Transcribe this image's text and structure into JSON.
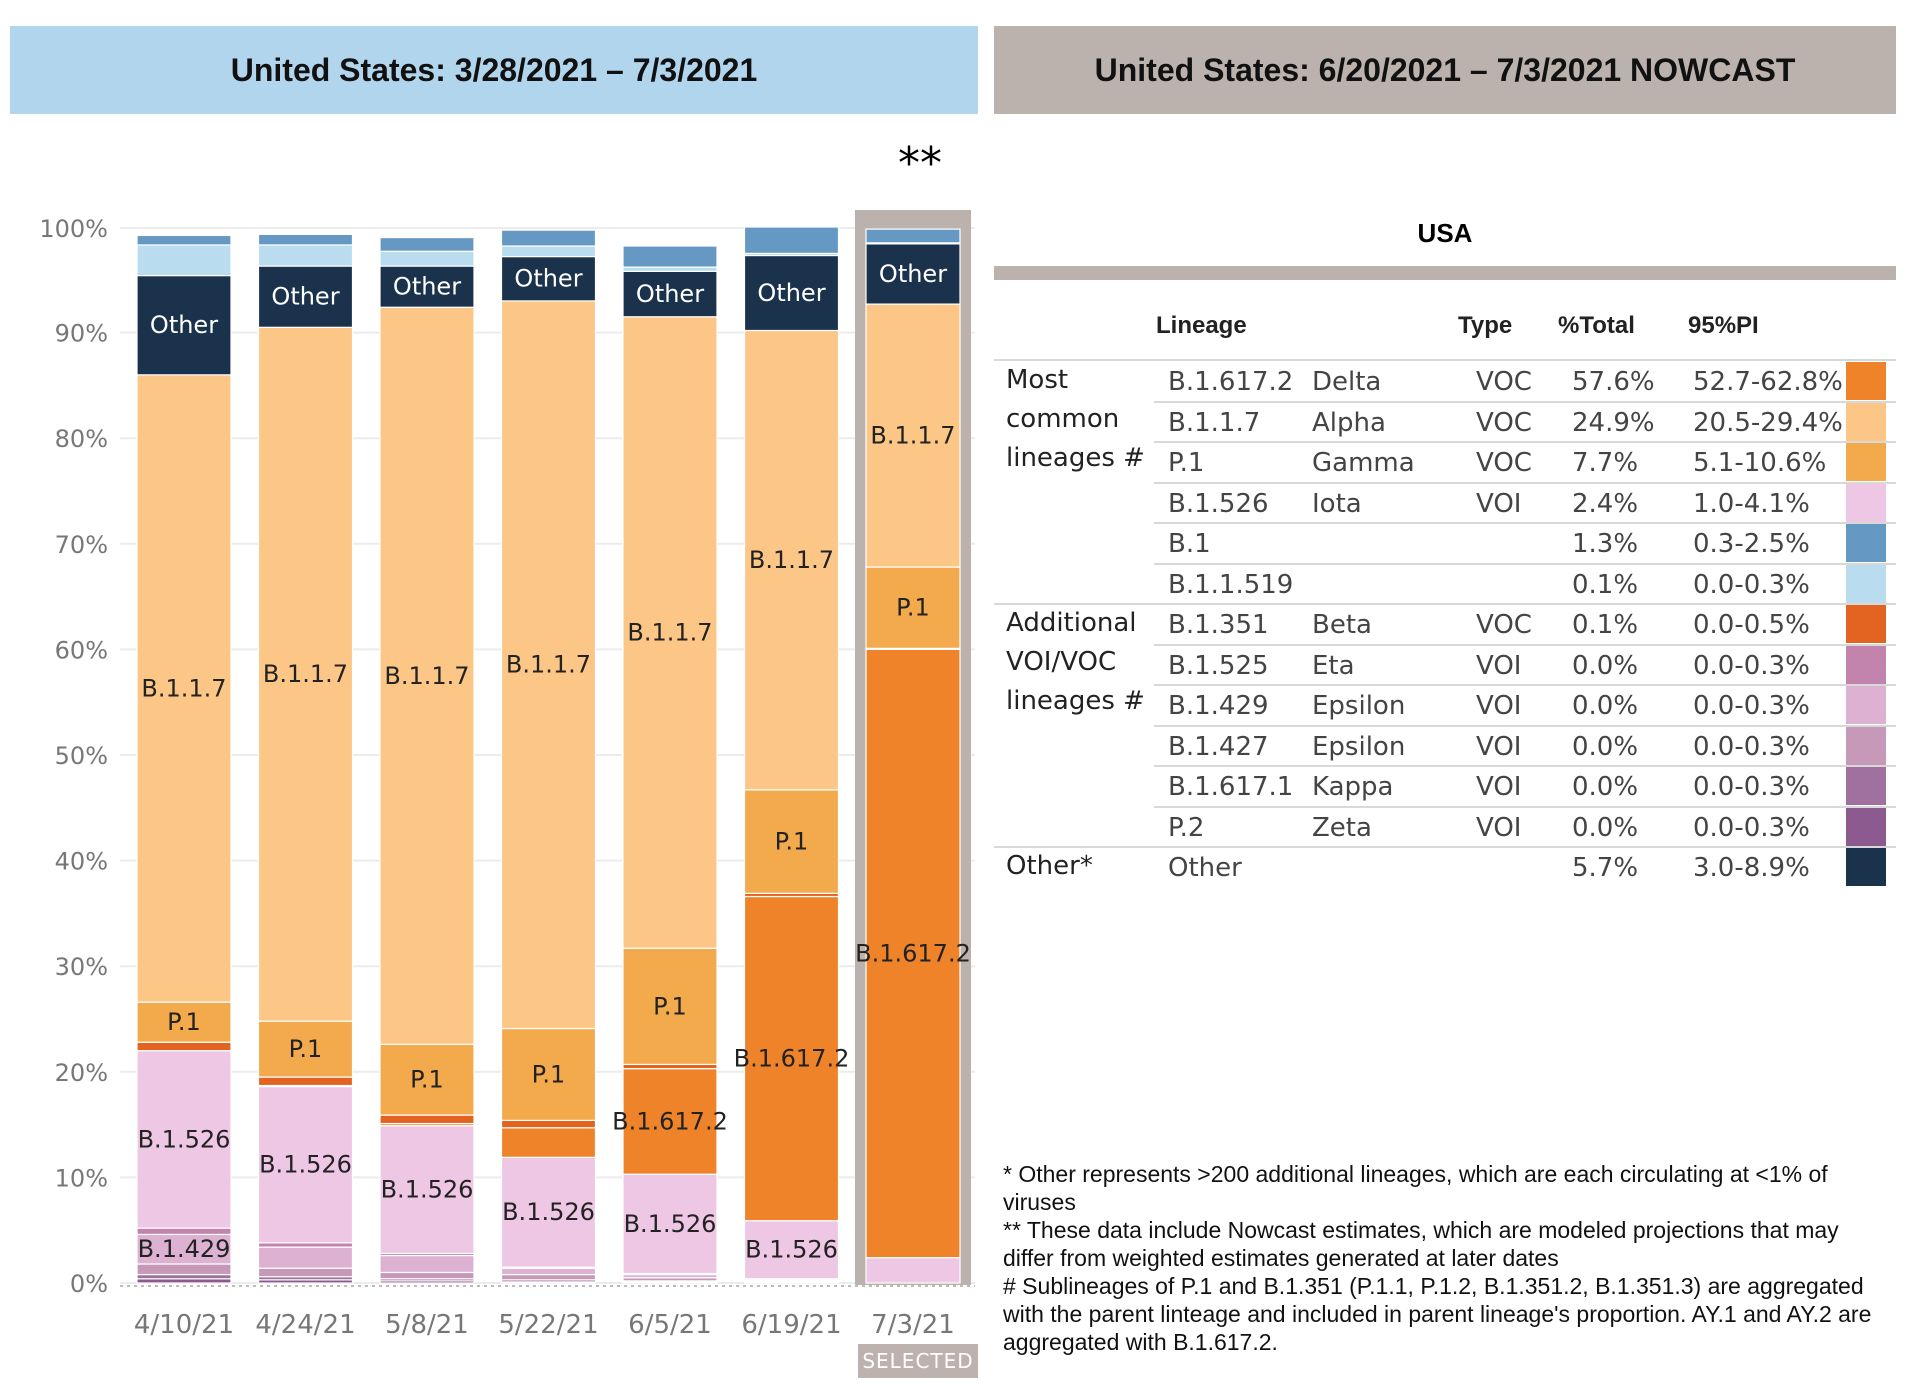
{
  "headers": {
    "left": "United States: 3/28/2021 – 7/3/2021",
    "right": "United States: 6/20/2021 – 7/3/2021 NOWCAST"
  },
  "stars": "**",
  "selected_label": "SELECTED",
  "chart_data": {
    "type": "bar",
    "stacked": true,
    "ylim": [
      0,
      100
    ],
    "yticks": [
      "0%",
      "10%",
      "20%",
      "30%",
      "40%",
      "50%",
      "60%",
      "70%",
      "80%",
      "90%",
      "100%"
    ],
    "categories": [
      "4/10/21",
      "4/24/21",
      "5/8/21",
      "5/22/21",
      "6/5/21",
      "6/19/21",
      "7/3/21"
    ],
    "selected_index": 6,
    "series": [
      {
        "name": "P.2",
        "color": "#8d5a8f",
        "values": [
          0.4,
          0.3,
          0.2,
          0.1,
          0.1,
          0.1,
          0.0
        ]
      },
      {
        "name": "B.1.617.1",
        "color": "#a0709e",
        "values": [
          0.4,
          0.3,
          0.2,
          0.2,
          0.1,
          0.1,
          0.0
        ]
      },
      {
        "name": "B.1.427",
        "color": "#c699b9",
        "values": [
          1.0,
          0.8,
          0.6,
          0.5,
          0.3,
          0.1,
          0.0
        ]
      },
      {
        "name": "B.1.429",
        "color": "#dcb1d1",
        "values": [
          2.8,
          2.0,
          1.6,
          0.6,
          0.3,
          0.1,
          0.0
        ]
      },
      {
        "name": "B.1.525",
        "color": "#c284ac",
        "values": [
          0.6,
          0.4,
          0.2,
          0.1,
          0.1,
          0.0,
          0.0
        ]
      },
      {
        "name": "B.1.526",
        "color": "#edc7e4",
        "values": [
          16.8,
          14.8,
          12.1,
          10.4,
          9.4,
          5.5,
          2.4
        ]
      },
      {
        "name": "B.1.617.2",
        "color": "#ef832a",
        "values": [
          0.0,
          0.1,
          0.2,
          2.8,
          10.0,
          30.7,
          57.6
        ]
      },
      {
        "name": "B.1.351",
        "color": "#e26420",
        "values": [
          0.8,
          0.8,
          0.8,
          0.7,
          0.4,
          0.3,
          0.1
        ]
      },
      {
        "name": "P.1",
        "color": "#f2aa4c",
        "values": [
          3.8,
          5.3,
          6.7,
          8.7,
          11.0,
          9.8,
          7.7
        ]
      },
      {
        "name": "B.1.1.7",
        "color": "#fbc686",
        "values": [
          59.4,
          65.7,
          69.8,
          68.9,
          59.8,
          43.5,
          24.9
        ]
      },
      {
        "name": "Other",
        "color": "#1b324d",
        "values": [
          9.4,
          5.8,
          3.9,
          4.2,
          4.3,
          7.1,
          5.7
        ]
      },
      {
        "name": "B.1.1.519",
        "color": "#b9dcef",
        "values": [
          2.9,
          2.0,
          1.4,
          1.0,
          0.4,
          0.2,
          0.1
        ]
      },
      {
        "name": "B.1",
        "color": "#6598c2",
        "values": [
          0.9,
          1.0,
          1.3,
          1.5,
          2.0,
          2.5,
          1.3
        ]
      }
    ],
    "labels": [
      [
        "B.1.429",
        "B.1.526",
        "P.1",
        "B.1.1.7",
        "Other"
      ],
      [
        "B.1.526",
        "P.1",
        "B.1.1.7",
        "Other"
      ],
      [
        "B.1.526",
        "P.1",
        "B.1.1.7",
        "Other"
      ],
      [
        "B.1.526",
        "P.1",
        "B.1.1.7",
        "Other"
      ],
      [
        "B.1.526",
        "B.1.617.2",
        "P.1",
        "B.1.1.7",
        "Other"
      ],
      [
        "B.1.526",
        "B.1.617.2",
        "P.1",
        "B.1.1.7",
        "Other"
      ],
      [
        "B.1.617.2",
        "P.1",
        "B.1.1.7",
        "Other"
      ]
    ]
  },
  "table": {
    "title": "USA",
    "headers": {
      "lineage": "Lineage",
      "type": "Type",
      "total": "%Total",
      "pi": "95%PI"
    },
    "groups": [
      {
        "label": [
          "Most",
          "common",
          "lineages #"
        ],
        "row_start": 0
      },
      {
        "label": [
          "Additional",
          "VOI/VOC",
          "lineages #"
        ],
        "row_start": 6
      },
      {
        "label": [
          "Other*"
        ],
        "row_start": 12
      }
    ],
    "rows": [
      {
        "lineage": "B.1.617.2",
        "name": "Delta",
        "type": "VOC",
        "total": "57.6%",
        "pi": "52.7-62.8%",
        "color": "#ef832a"
      },
      {
        "lineage": "B.1.1.7",
        "name": "Alpha",
        "type": "VOC",
        "total": "24.9%",
        "pi": "20.5-29.4%",
        "color": "#fbc686"
      },
      {
        "lineage": "P.1",
        "name": "Gamma",
        "type": "VOC",
        "total": "7.7%",
        "pi": "5.1-10.6%",
        "color": "#f2aa4c"
      },
      {
        "lineage": "B.1.526",
        "name": "Iota",
        "type": "VOI",
        "total": "2.4%",
        "pi": "1.0-4.1%",
        "color": "#edc7e4"
      },
      {
        "lineage": "B.1",
        "name": "",
        "type": "",
        "total": "1.3%",
        "pi": "0.3-2.5%",
        "color": "#6598c2"
      },
      {
        "lineage": "B.1.1.519",
        "name": "",
        "type": "",
        "total": "0.1%",
        "pi": "0.0-0.3%",
        "color": "#b9dcef"
      },
      {
        "lineage": "B.1.351",
        "name": "Beta",
        "type": "VOC",
        "total": "0.1%",
        "pi": "0.0-0.5%",
        "color": "#e26420"
      },
      {
        "lineage": "B.1.525",
        "name": "Eta",
        "type": "VOI",
        "total": "0.0%",
        "pi": "0.0-0.3%",
        "color": "#c284ac"
      },
      {
        "lineage": "B.1.429",
        "name": "Epsilon",
        "type": "VOI",
        "total": "0.0%",
        "pi": "0.0-0.3%",
        "color": "#dcb1d1"
      },
      {
        "lineage": "B.1.427",
        "name": "Epsilon",
        "type": "VOI",
        "total": "0.0%",
        "pi": "0.0-0.3%",
        "color": "#c699b9"
      },
      {
        "lineage": "B.1.617.1",
        "name": "Kappa",
        "type": "VOI",
        "total": "0.0%",
        "pi": "0.0-0.3%",
        "color": "#a0709e"
      },
      {
        "lineage": "P.2",
        "name": "Zeta",
        "type": "VOI",
        "total": "0.0%",
        "pi": "0.0-0.3%",
        "color": "#8d5a8f"
      },
      {
        "lineage": "Other",
        "name": "",
        "type": "",
        "total": "5.7%",
        "pi": "3.0-8.9%",
        "color": "#1b324d"
      }
    ]
  },
  "notes": [
    "*      Other represents >200 additional lineages, which are each circulating at <1% of viruses",
    "**      These data include Nowcast estimates, which are modeled projections that may differ from weighted estimates generated at later dates",
    "#      Sublineages of P.1 and B.1.351 (P.1.1,  P.1.2, B.1.351.2, B.1.351.3) are aggregated with the parent linteage and included in parent lineage's proportion. AY.1 and AY.2 are aggregated with B.1.617.2."
  ]
}
